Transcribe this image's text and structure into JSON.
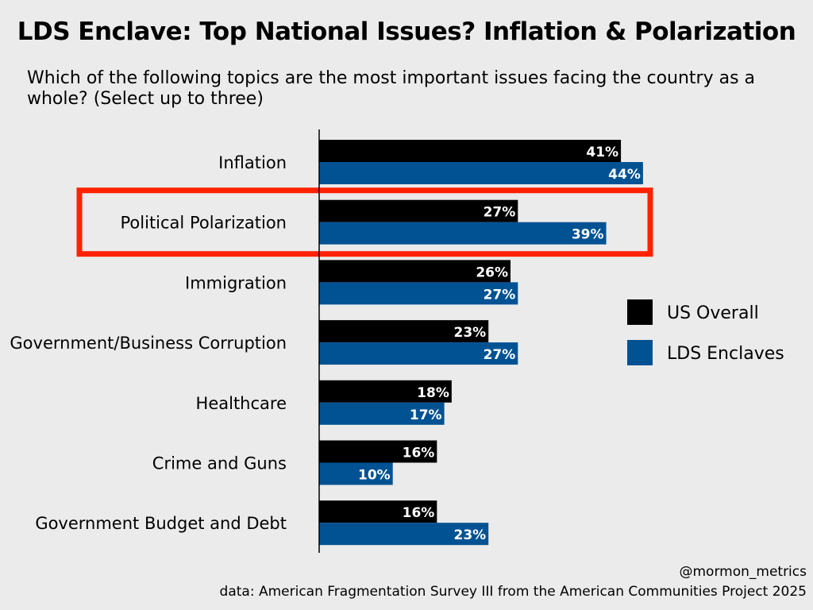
{
  "chart_data": {
    "type": "bar",
    "orientation": "horizontal",
    "title": "LDS Enclave: Top National Issues? Inflation & Polarization",
    "subtitle": "Which of the following topics are the most important issues facing the country as a whole? (Select up to three)",
    "categories": [
      "Inflation",
      "Political Polarization",
      "Immigration",
      "Government/Business Corruption",
      "Healthcare",
      "Crime and Guns",
      "Government Budget and Debt"
    ],
    "series": [
      {
        "name": "US Overall",
        "color": "#000000",
        "values": [
          41,
          27,
          26,
          23,
          18,
          16,
          16
        ]
      },
      {
        "name": "LDS Enclaves",
        "color": "#005293",
        "values": [
          44,
          39,
          27,
          27,
          17,
          10,
          23
        ]
      }
    ],
    "value_suffix": "%",
    "xlim": [
      0,
      65
    ],
    "grid": false,
    "legend_position": "right",
    "highlight": {
      "category": "Political Polarization",
      "color": "#ff2200"
    },
    "credit": "@mormon_metrics",
    "source": "data: American Fragmentation Survey III from the American Communities Project 2025"
  }
}
